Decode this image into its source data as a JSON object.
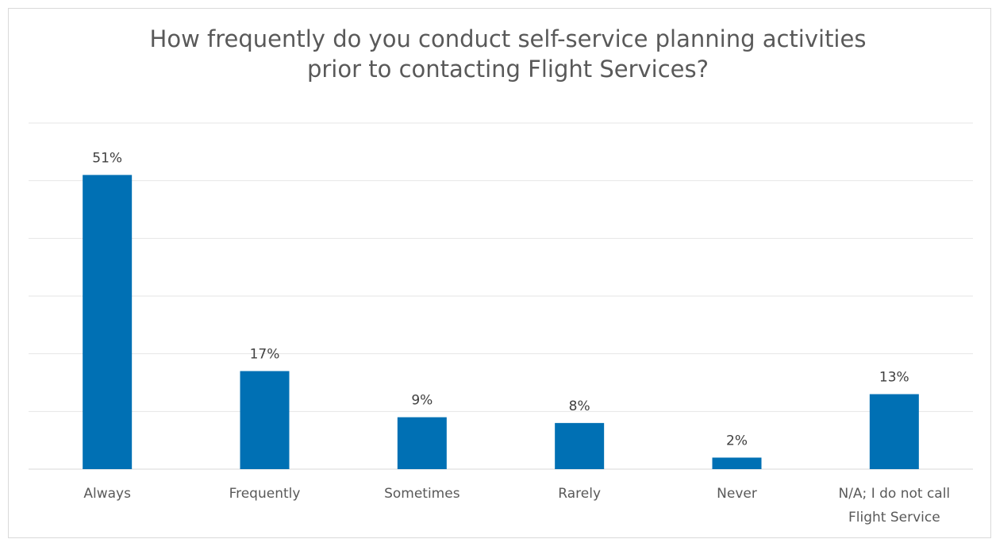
{
  "chart_data": {
    "type": "bar",
    "title_lines": [
      "How frequently do you conduct self-service planning activities",
      "prior to contacting Flight Services?"
    ],
    "categories": [
      [
        "Always"
      ],
      [
        "Frequently"
      ],
      [
        "Sometimes"
      ],
      [
        "Rarely"
      ],
      [
        "Never"
      ],
      [
        "N/A; I do not call",
        "Flight Service"
      ]
    ],
    "values": [
      51,
      17,
      9,
      8,
      2,
      13
    ],
    "data_labels": [
      "51%",
      "17%",
      "9%",
      "8%",
      "2%",
      "13%"
    ],
    "unit": "%",
    "ylim": [
      0,
      60
    ],
    "gridlines": true,
    "legend": "none",
    "colors": {
      "bar": "#0070B4",
      "grid": "#e6e6e6",
      "axis": "#d9d9d9",
      "text": "#595959"
    }
  }
}
